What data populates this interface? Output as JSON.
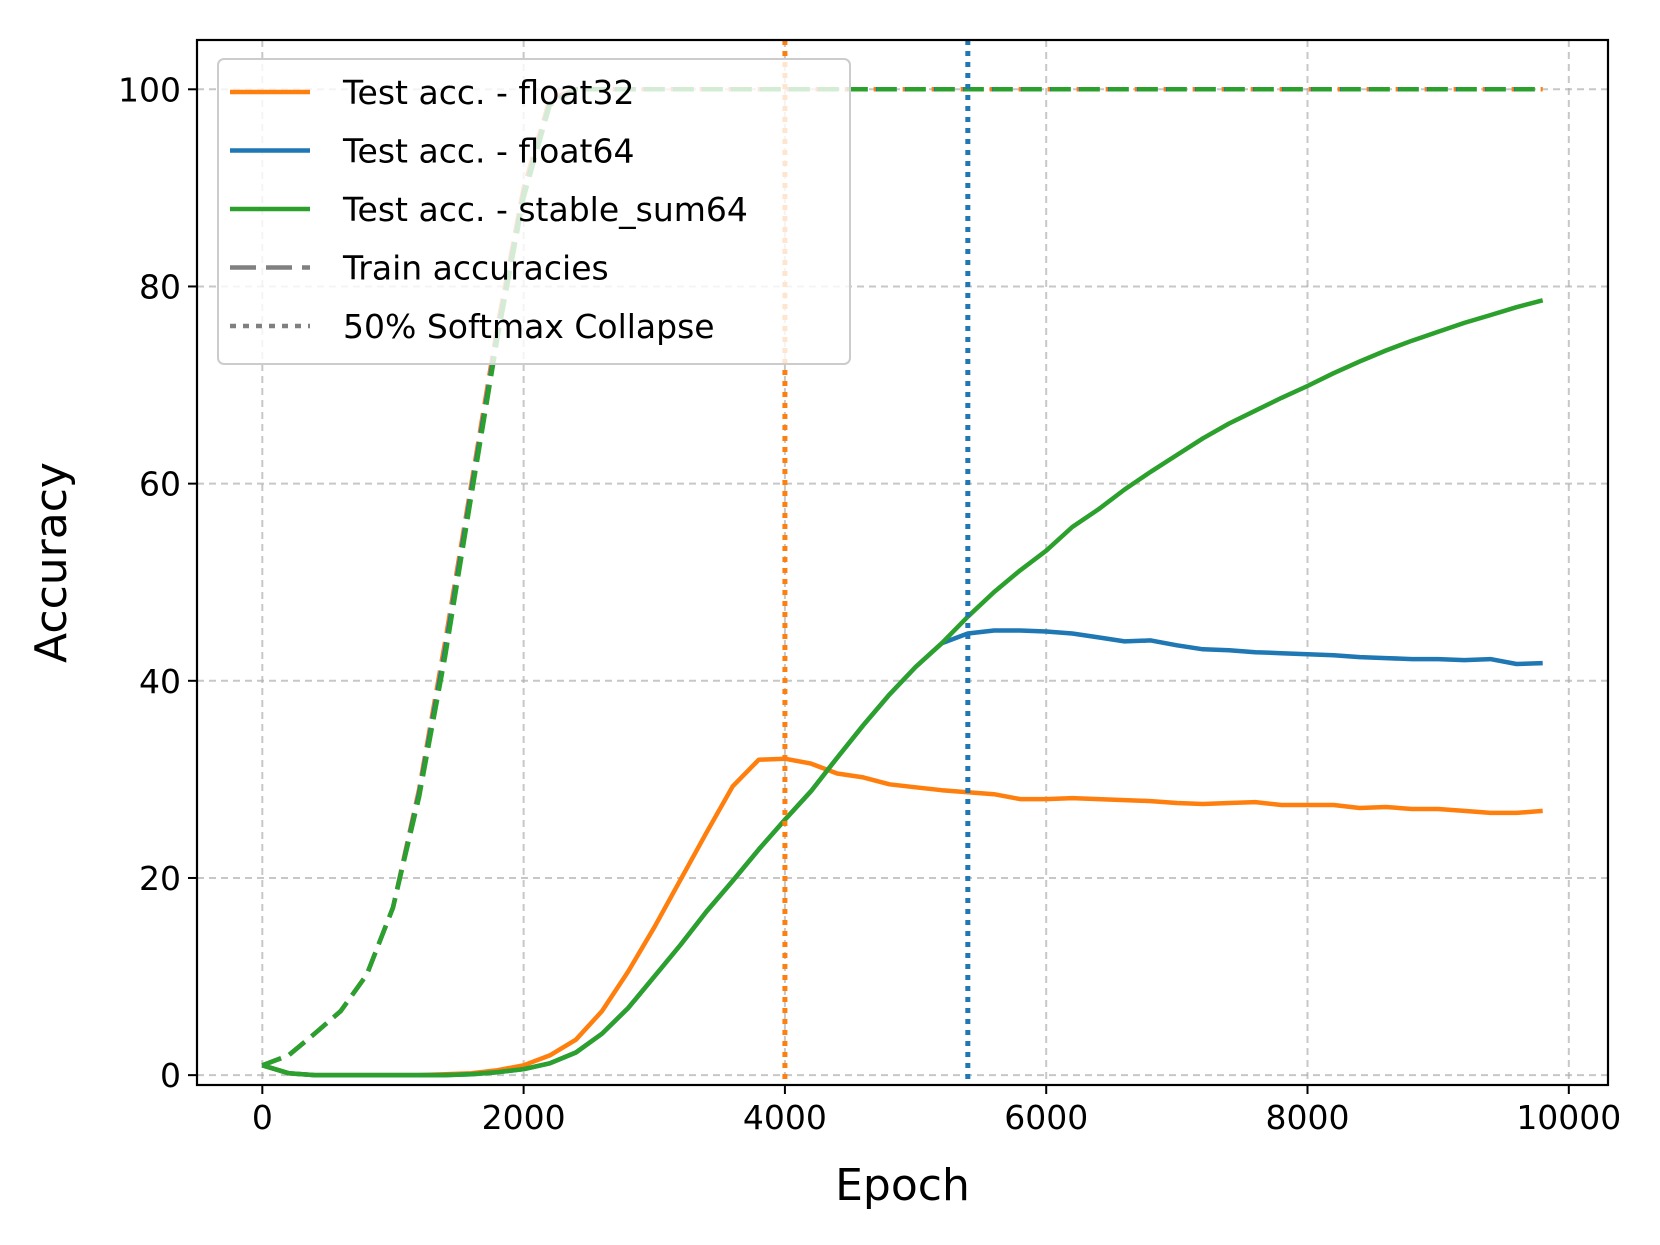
{
  "chart_data": {
    "type": "line",
    "xlabel": "Epoch",
    "ylabel": "Accuracy",
    "xlim": [
      -500,
      10300
    ],
    "ylim": [
      -1,
      105
    ],
    "xticks": [
      0,
      2000,
      4000,
      6000,
      8000,
      10000
    ],
    "yticks": [
      0,
      20,
      40,
      60,
      80,
      100
    ],
    "grid": true,
    "legend_position": "top-left",
    "colors": {
      "float32": "#ff7f0e",
      "float64": "#1f77b4",
      "stable_sum64": "#2ca02c",
      "neutral": "#808080"
    },
    "legend": [
      {
        "label": "Test acc. - float32",
        "style": "solid",
        "color": "#ff7f0e"
      },
      {
        "label": "Test acc. - float64",
        "style": "solid",
        "color": "#1f77b4"
      },
      {
        "label": "Test acc. - stable_sum64",
        "style": "solid",
        "color": "#2ca02c"
      },
      {
        "label": "Train accuracies",
        "style": "dashed",
        "color": "#808080"
      },
      {
        "label": "50% Softmax Collapse",
        "style": "dotted",
        "color": "#808080"
      }
    ],
    "x": [
      0,
      200,
      400,
      600,
      800,
      1000,
      1200,
      1400,
      1600,
      1800,
      2000,
      2200,
      2400,
      2600,
      2800,
      3000,
      3200,
      3400,
      3600,
      3800,
      4000,
      4200,
      4400,
      4600,
      4800,
      5000,
      5200,
      5400,
      5600,
      5800,
      6000,
      6200,
      6400,
      6600,
      6800,
      7000,
      7200,
      7400,
      7600,
      7800,
      8000,
      8200,
      8400,
      8600,
      8800,
      9000,
      9200,
      9400,
      9600,
      9800
    ],
    "series": [
      {
        "key": "float32",
        "kind": "test",
        "style": "solid",
        "color": "#ff7f0e",
        "values": [
          1.0,
          0.2,
          0.0,
          0.0,
          0.0,
          0.0,
          0.0,
          0.1,
          0.2,
          0.5,
          1.0,
          2.0,
          3.6,
          6.5,
          10.5,
          15.0,
          19.8,
          24.6,
          29.3,
          32.0,
          32.1,
          31.6,
          30.6,
          30.2,
          29.5,
          29.2,
          28.9,
          28.7,
          28.5,
          28.0,
          28.0,
          28.1,
          28.0,
          27.9,
          27.8,
          27.6,
          27.5,
          27.6,
          27.7,
          27.4,
          27.4,
          27.4,
          27.1,
          27.2,
          27.0,
          27.0,
          26.8,
          26.6,
          26.6,
          26.8
        ]
      },
      {
        "key": "float64",
        "kind": "test",
        "style": "solid",
        "color": "#1f77b4",
        "values": [
          1.0,
          0.2,
          0.0,
          0.0,
          0.0,
          0.0,
          0.0,
          0.0,
          0.1,
          0.3,
          0.6,
          1.2,
          2.3,
          4.2,
          6.8,
          10.0,
          13.2,
          16.6,
          19.7,
          22.9,
          25.9,
          28.8,
          32.2,
          35.5,
          38.6,
          41.4,
          43.8,
          44.8,
          45.1,
          45.1,
          45.0,
          44.8,
          44.4,
          44.0,
          44.1,
          43.6,
          43.2,
          43.1,
          42.9,
          42.8,
          42.7,
          42.6,
          42.4,
          42.3,
          42.2,
          42.2,
          42.1,
          42.2,
          41.7,
          41.8
        ]
      },
      {
        "key": "stable_sum64",
        "kind": "test",
        "style": "solid",
        "color": "#2ca02c",
        "values": [
          1.0,
          0.2,
          0.0,
          0.0,
          0.0,
          0.0,
          0.0,
          0.0,
          0.1,
          0.3,
          0.6,
          1.2,
          2.3,
          4.2,
          6.8,
          10.0,
          13.2,
          16.6,
          19.7,
          22.9,
          25.9,
          28.8,
          32.2,
          35.5,
          38.6,
          41.4,
          43.8,
          46.5,
          49.0,
          51.2,
          53.2,
          55.6,
          57.4,
          59.4,
          61.2,
          62.9,
          64.6,
          66.1,
          67.4,
          68.7,
          69.9,
          71.2,
          72.4,
          73.5,
          74.5,
          75.4,
          76.3,
          77.1,
          77.9,
          78.6
        ]
      },
      {
        "key": "float32",
        "kind": "train",
        "style": "dashed",
        "color": "#ff7f0e",
        "values": [
          1.0,
          2.0,
          4.2,
          6.5,
          10.2,
          17.0,
          29.0,
          44.0,
          60.0,
          76.0,
          90.0,
          99.0,
          100,
          100,
          100,
          100,
          100,
          100,
          100,
          100,
          100,
          100,
          100,
          100,
          100,
          100,
          100,
          100,
          100,
          100,
          100,
          100,
          100,
          100,
          100,
          100,
          100,
          100,
          100,
          100,
          100,
          100,
          100,
          100,
          100,
          100,
          100,
          100,
          100,
          100
        ]
      },
      {
        "key": "float64",
        "kind": "train",
        "style": "dashed",
        "color": "#1f77b4",
        "values": [
          1.0,
          2.0,
          4.2,
          6.5,
          10.2,
          17.0,
          28.6,
          43.2,
          59.4,
          75.3,
          89.4,
          98.6,
          100,
          100,
          100,
          100,
          100,
          100,
          100,
          100,
          100,
          100,
          100,
          100,
          100,
          100,
          100,
          100,
          100,
          100,
          100,
          100,
          100,
          100,
          100,
          100,
          100,
          100,
          100,
          100,
          100,
          100,
          100,
          100,
          100,
          100,
          100,
          100,
          100,
          100
        ]
      },
      {
        "key": "stable_sum64",
        "kind": "train",
        "style": "dashed",
        "color": "#2ca02c",
        "values": [
          1.0,
          2.0,
          4.2,
          6.5,
          10.2,
          17.0,
          28.2,
          42.5,
          58.8,
          74.8,
          89.0,
          98.4,
          100,
          100,
          100,
          100,
          100,
          100,
          100,
          100,
          100,
          100,
          100,
          100,
          100,
          100,
          100,
          100,
          100,
          100,
          100,
          100,
          100,
          100,
          100,
          100,
          100,
          100,
          100,
          100,
          100,
          100,
          100,
          100,
          100,
          100,
          100,
          100,
          100,
          100
        ]
      }
    ],
    "vlines": [
      {
        "key": "float32",
        "x": 4000,
        "style": "dotted",
        "color": "#ff7f0e"
      },
      {
        "key": "float64",
        "x": 5400,
        "style": "dotted",
        "color": "#1f77b4"
      }
    ]
  }
}
